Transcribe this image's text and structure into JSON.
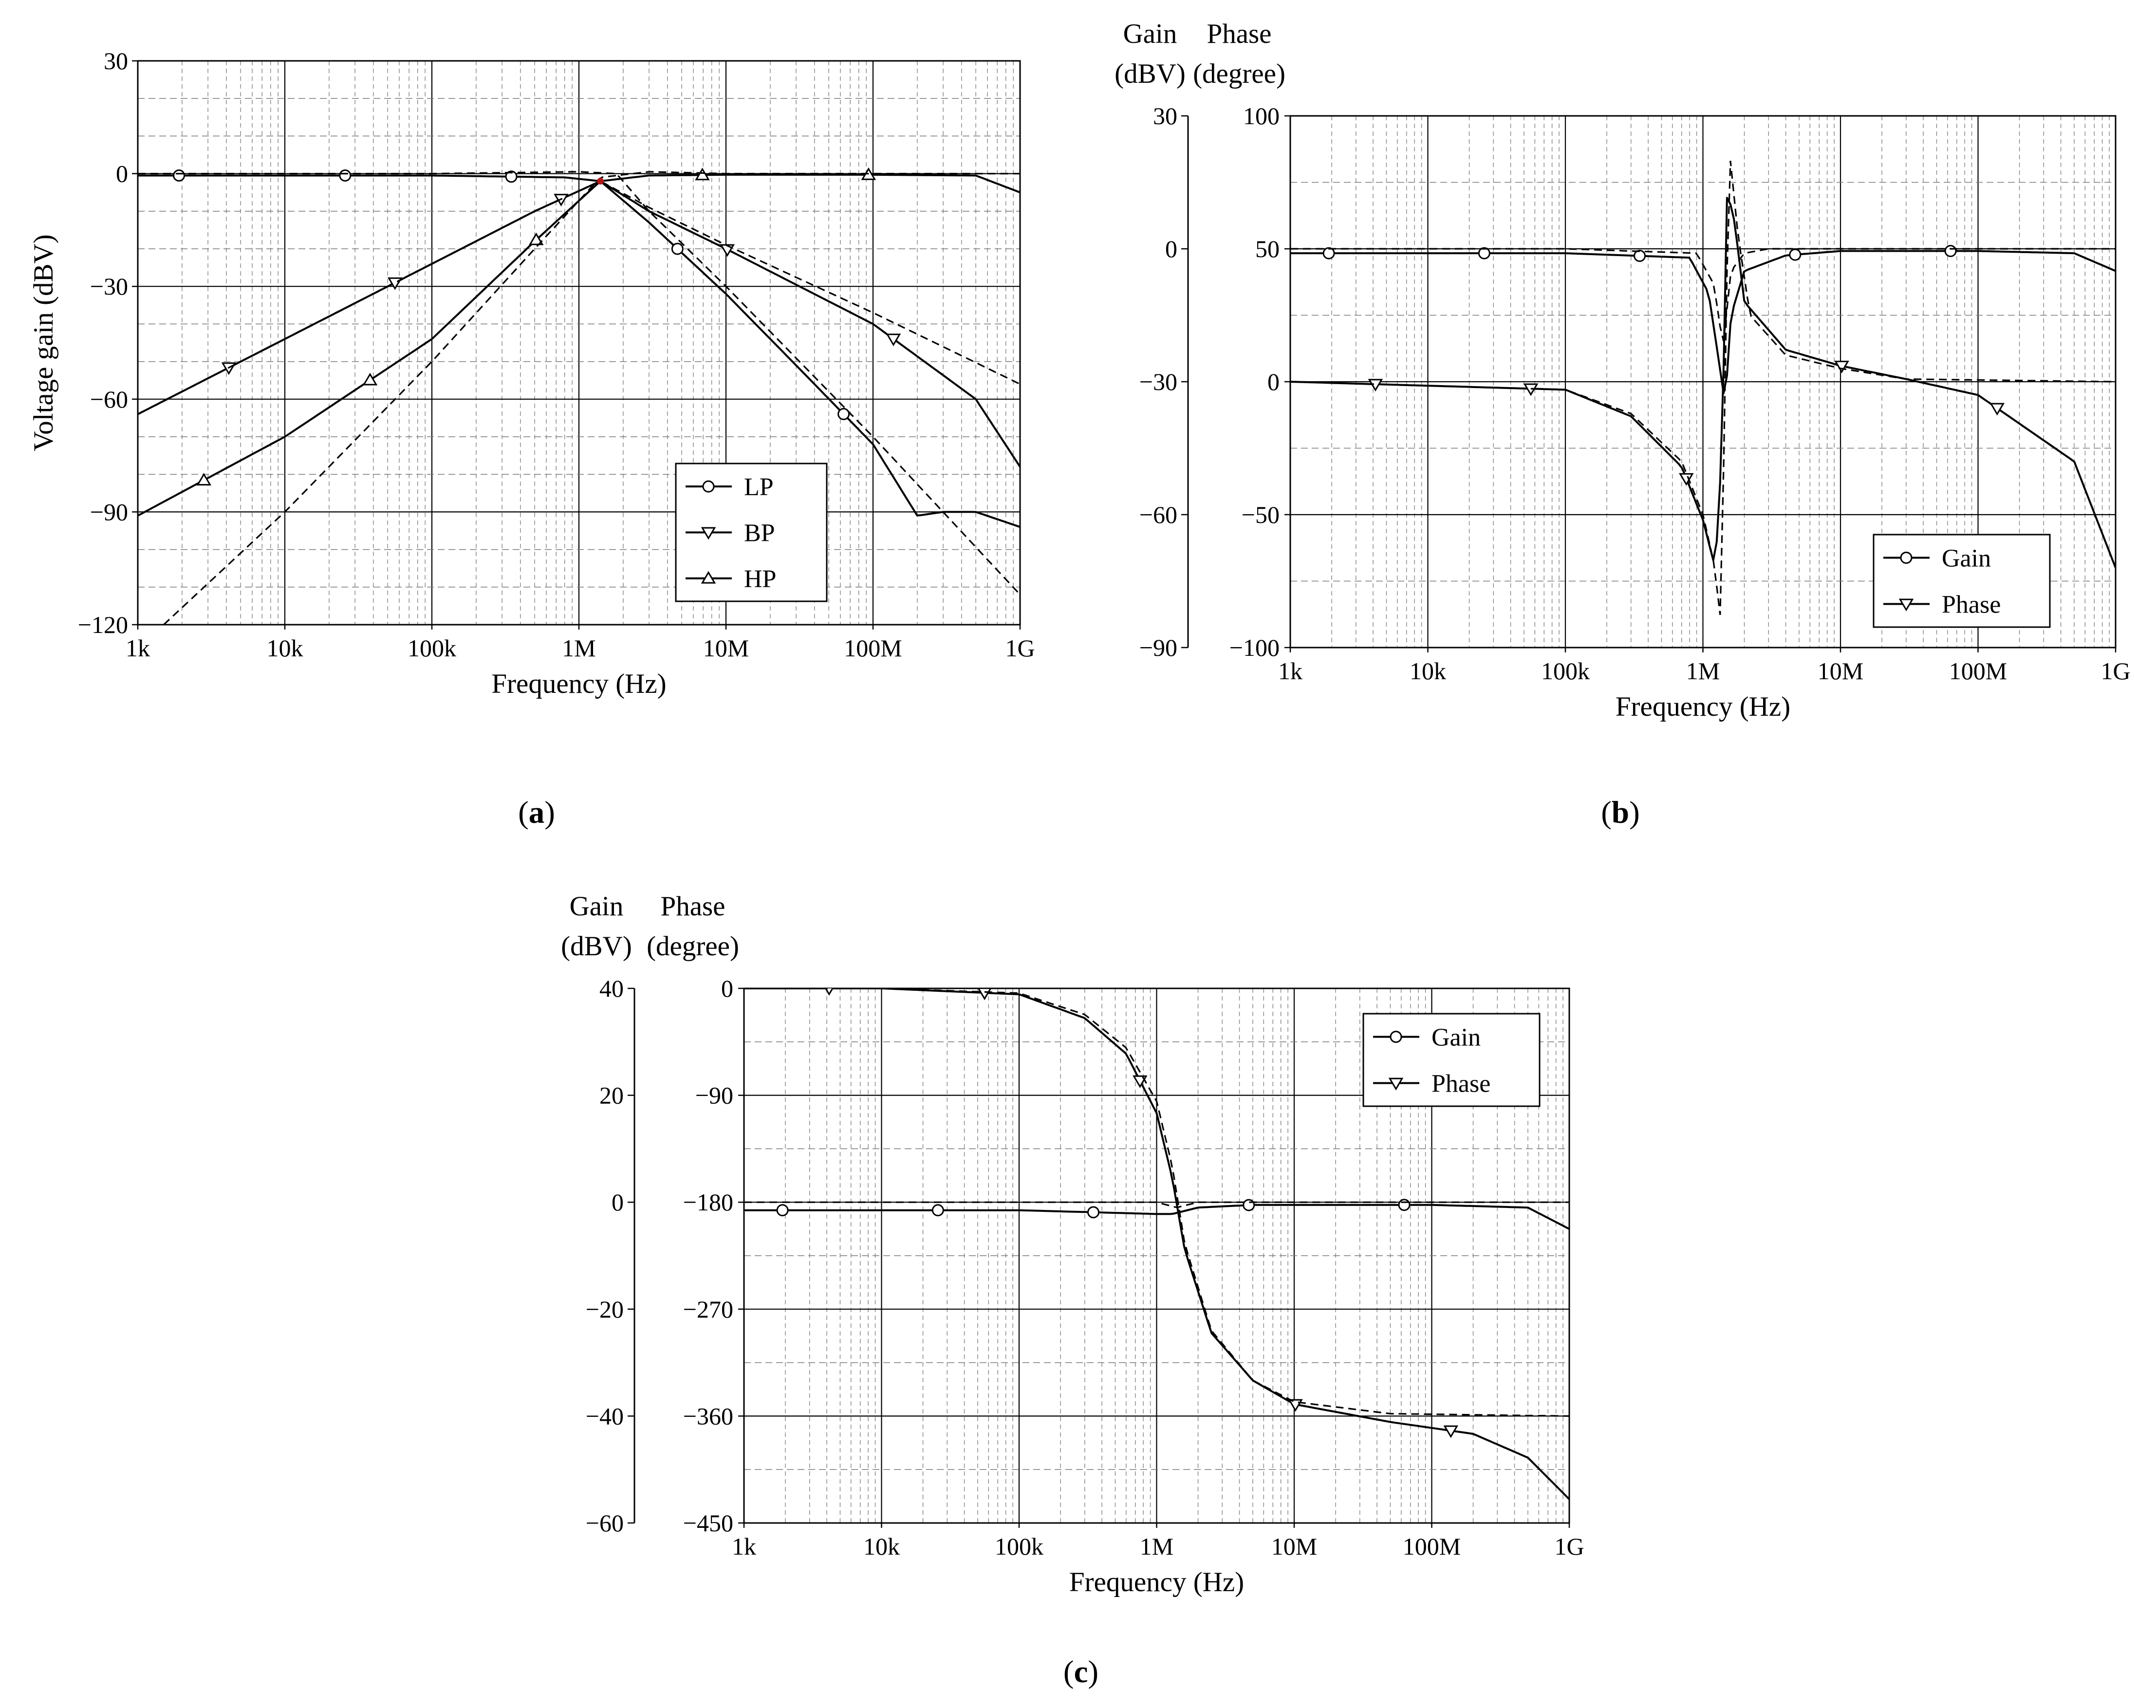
{
  "chart_data": [
    {
      "id": "a",
      "type": "line",
      "caption_letter": "a",
      "xlabel": "Frequency (Hz)",
      "ylabel": "Voltage gain (dBV)",
      "xscale": "log",
      "xlim": [
        1000,
        1000000000
      ],
      "x_ticks": [
        "1k",
        "10k",
        "100k",
        "1M",
        "10M",
        "100M",
        "1G"
      ],
      "ylim": [
        -120,
        30
      ],
      "y_ticks": [
        "30",
        "0",
        "−30",
        "−60",
        "−90",
        "−120"
      ],
      "legend": {
        "position": "bottom-right",
        "entries": [
          "LP",
          "BP",
          "HP"
        ]
      },
      "series": [
        {
          "name": "LP",
          "marker": "circle",
          "style": "solid",
          "x": [
            1000,
            100000,
            800000,
            1400000,
            3000000,
            10000000,
            30000000,
            100000000,
            200000000,
            300000000,
            500000000,
            1000000000
          ],
          "y": [
            -0.5,
            -0.5,
            -1,
            -2,
            -13,
            -32,
            -51,
            -72,
            -91,
            -90,
            -90,
            -94
          ]
        },
        {
          "name": "LP (dashed)",
          "marker": "none",
          "style": "dashed",
          "x": [
            1000,
            100000,
            1000000,
            1800000,
            3000000,
            10000000,
            100000000,
            1000000000
          ],
          "y": [
            0,
            0,
            0.5,
            0,
            -10,
            -30,
            -70,
            -112
          ]
        },
        {
          "name": "BP",
          "marker": "triangle-down",
          "style": "solid",
          "x": [
            1000,
            10000,
            100000,
            500000,
            1400000,
            3000000,
            10000000,
            100000000,
            500000000,
            1000000000
          ],
          "y": [
            -64,
            -44,
            -24,
            -10,
            -2,
            -10,
            -20,
            -40,
            -60,
            -78
          ]
        },
        {
          "name": "BP (dashed)",
          "marker": "none",
          "style": "dashed",
          "x": [
            1000,
            10000,
            100000,
            500000,
            1400000,
            3000000,
            10000000,
            100000000,
            1000000000
          ],
          "y": [
            -64,
            -44,
            -24,
            -10,
            -2,
            -9,
            -19,
            -37,
            -56
          ]
        },
        {
          "name": "HP",
          "marker": "triangle-up",
          "style": "solid",
          "x": [
            1000,
            10000,
            100000,
            500000,
            1400000,
            3000000,
            10000000,
            100000000,
            500000000,
            1000000000
          ],
          "y": [
            -91,
            -70,
            -44,
            -18,
            -2,
            -0.5,
            -0.3,
            -0.3,
            -0.5,
            -5
          ]
        },
        {
          "name": "HP (dashed)",
          "marker": "none",
          "style": "dashed",
          "x": [
            1500,
            10000,
            100000,
            500000,
            1400000,
            3000000,
            10000000,
            1000000000
          ],
          "y": [
            -120,
            -90,
            -50,
            -20,
            -1,
            0.5,
            0,
            0
          ]
        }
      ]
    },
    {
      "id": "b",
      "type": "line",
      "caption_letter": "b",
      "xlabel": "Frequency (Hz)",
      "ylabel_left": [
        "Gain",
        "(dBV)"
      ],
      "ylabel_right": [
        "Phase",
        "(degree)"
      ],
      "xscale": "log",
      "xlim": [
        1000,
        1000000000
      ],
      "x_ticks": [
        "1k",
        "10k",
        "100k",
        "1M",
        "10M",
        "100M",
        "1G"
      ],
      "ylim_gain": [
        -90,
        30
      ],
      "gain_ticks": [
        "30",
        "0",
        "−30",
        "−60",
        "−90"
      ],
      "ylim_phase": [
        -100,
        100
      ],
      "phase_ticks": [
        "100",
        "50",
        "0",
        "−50",
        "−100"
      ],
      "legend": {
        "position": "bottom-right",
        "entries": [
          "Gain",
          "Phase"
        ]
      },
      "series": [
        {
          "name": "Gain",
          "axis": "gain",
          "marker": "circle",
          "style": "solid",
          "x": [
            1000,
            100000,
            800000,
            1100000,
            1300000,
            1450000,
            1600000,
            2000000,
            4000000,
            10000000,
            100000000,
            500000000,
            1000000000
          ],
          "y": [
            -1,
            -1,
            -2,
            -10,
            -25,
            -35,
            -15,
            -5,
            -1.5,
            -0.5,
            -0.5,
            -1,
            -5
          ]
        },
        {
          "name": "Gain (dashed)",
          "axis": "gain",
          "marker": "none",
          "style": "dashed",
          "x": [
            1000,
            100000,
            900000,
            1200000,
            1400000,
            1600000,
            2000000,
            3000000,
            10000000,
            1000000000
          ],
          "y": [
            0,
            0,
            -1,
            -8,
            -22,
            -5,
            -1,
            0,
            0,
            0
          ]
        },
        {
          "name": "Phase",
          "axis": "phase",
          "marker": "triangle-down",
          "style": "solid",
          "x": [
            1000,
            100000,
            300000,
            700000,
            1000000,
            1200000,
            1300000,
            1400000,
            1500000,
            1700000,
            2000000,
            4000000,
            10000000,
            30000000,
            100000000,
            500000000,
            1000000000
          ],
          "y": [
            0,
            -3,
            -13,
            -32,
            -52,
            -68,
            -55,
            -5,
            72,
            60,
            30,
            12,
            6,
            1,
            -5,
            -30,
            -70
          ]
        },
        {
          "name": "Phase (dashed)",
          "axis": "phase",
          "marker": "none",
          "style": "dashed",
          "x": [
            1000,
            100000,
            300000,
            700000,
            1000000,
            1200000,
            1350000,
            1450000,
            1550000,
            1800000,
            2200000,
            4000000,
            10000000,
            30000000,
            1000000000
          ],
          "y": [
            0,
            -3,
            -12,
            -30,
            -50,
            -68,
            -90,
            0,
            88,
            55,
            25,
            10,
            5,
            1,
            0
          ]
        }
      ]
    },
    {
      "id": "c",
      "type": "line",
      "caption_letter": "c",
      "xlabel": "Frequency (Hz)",
      "ylabel_left": [
        "Gain",
        "(dBV)"
      ],
      "ylabel_right": [
        "Phase",
        "(degree)"
      ],
      "xscale": "log",
      "xlim": [
        1000,
        1000000000
      ],
      "x_ticks": [
        "1k",
        "10k",
        "100k",
        "1M",
        "10M",
        "100M",
        "1G"
      ],
      "ylim_gain": [
        -60,
        40
      ],
      "gain_ticks": [
        "40",
        "20",
        "0",
        "−20",
        "−40",
        "−60"
      ],
      "ylim_phase": [
        -450,
        0
      ],
      "phase_ticks": [
        "0",
        "−90",
        "−180",
        "−270",
        "−360",
        "−450"
      ],
      "legend": {
        "position": "top-right",
        "entries": [
          "Gain",
          "Phase"
        ]
      },
      "series": [
        {
          "name": "Gain",
          "axis": "gain",
          "marker": "circle",
          "style": "solid",
          "x": [
            1000,
            100000,
            1000000,
            1300000,
            2000000,
            5000000,
            100000000,
            500000000,
            1000000000
          ],
          "y": [
            -1.5,
            -1.5,
            -2.2,
            -2.2,
            -1,
            -0.5,
            -0.5,
            -1,
            -5
          ]
        },
        {
          "name": "Gain (dashed)",
          "axis": "gain",
          "marker": "none",
          "style": "dashed",
          "x": [
            1000,
            100000,
            1000000,
            1400000,
            2000000,
            1000000000
          ],
          "y": [
            0,
            0,
            0,
            -1,
            0,
            0
          ]
        },
        {
          "name": "Phase",
          "axis": "phase",
          "marker": "triangle-down",
          "style": "solid",
          "x": [
            1000,
            10000,
            100000,
            300000,
            600000,
            1000000,
            1300000,
            1600000,
            2500000,
            5000000,
            10000000,
            50000000,
            200000000,
            500000000,
            1000000000
          ],
          "y": [
            0,
            0,
            -5,
            -25,
            -55,
            -105,
            -160,
            -220,
            -290,
            -330,
            -350,
            -365,
            -375,
            -395,
            -430
          ]
        },
        {
          "name": "Phase (dashed)",
          "axis": "phase",
          "marker": "none",
          "style": "dashed",
          "x": [
            1000,
            10000,
            100000,
            300000,
            600000,
            1000000,
            1300000,
            1600000,
            2500000,
            5000000,
            10000000,
            50000000,
            1000000000
          ],
          "y": [
            0,
            0,
            -4,
            -22,
            -50,
            -95,
            -150,
            -215,
            -288,
            -330,
            -348,
            -358,
            -360
          ]
        }
      ]
    }
  ]
}
